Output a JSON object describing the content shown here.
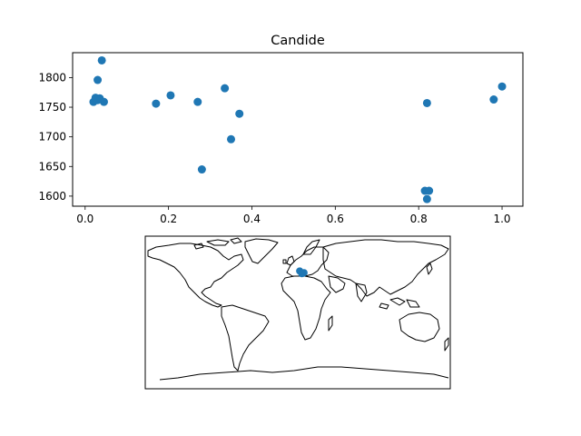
{
  "chart_data": [
    {
      "type": "scatter",
      "title": "Candide",
      "xlabel": "",
      "ylabel": "",
      "xlim": [
        -0.03,
        1.05
      ],
      "ylim": [
        1583,
        1842
      ],
      "xticks": [
        0.0,
        0.2,
        0.4,
        0.6,
        0.8,
        1.0
      ],
      "xtick_labels": [
        "0.0",
        "0.2",
        "0.4",
        "0.6",
        "0.8",
        "1.0"
      ],
      "yticks": [
        1600,
        1650,
        1700,
        1750,
        1800
      ],
      "ytick_labels": [
        "1600",
        "1650",
        "1700",
        "1750",
        "1800"
      ],
      "grid": false,
      "color": "#1f77b4",
      "x": [
        0.02,
        0.025,
        0.03,
        0.035,
        0.04,
        0.045,
        0.17,
        0.205,
        0.27,
        0.28,
        0.335,
        0.35,
        0.37,
        0.815,
        0.82,
        0.825,
        0.82,
        0.98,
        1.0,
        0.03
      ],
      "y": [
        1759,
        1766,
        1796,
        1765,
        1829,
        1759,
        1756,
        1770,
        1759,
        1645,
        1782,
        1696,
        1739,
        1609,
        1595,
        1609,
        1757,
        1763,
        1785,
        1762
      ]
    },
    {
      "type": "map",
      "projection": "plate-carree",
      "extent": [
        -180,
        180,
        -90,
        90
      ],
      "marker_color": "#1f77b4",
      "points": [
        {
          "lon": 2.3,
          "lat": 48.9
        },
        {
          "lon": 4.8,
          "lat": 45.8
        },
        {
          "lon": 6.1,
          "lat": 46.2
        },
        {
          "lon": 7.4,
          "lat": 46.9
        }
      ]
    }
  ]
}
